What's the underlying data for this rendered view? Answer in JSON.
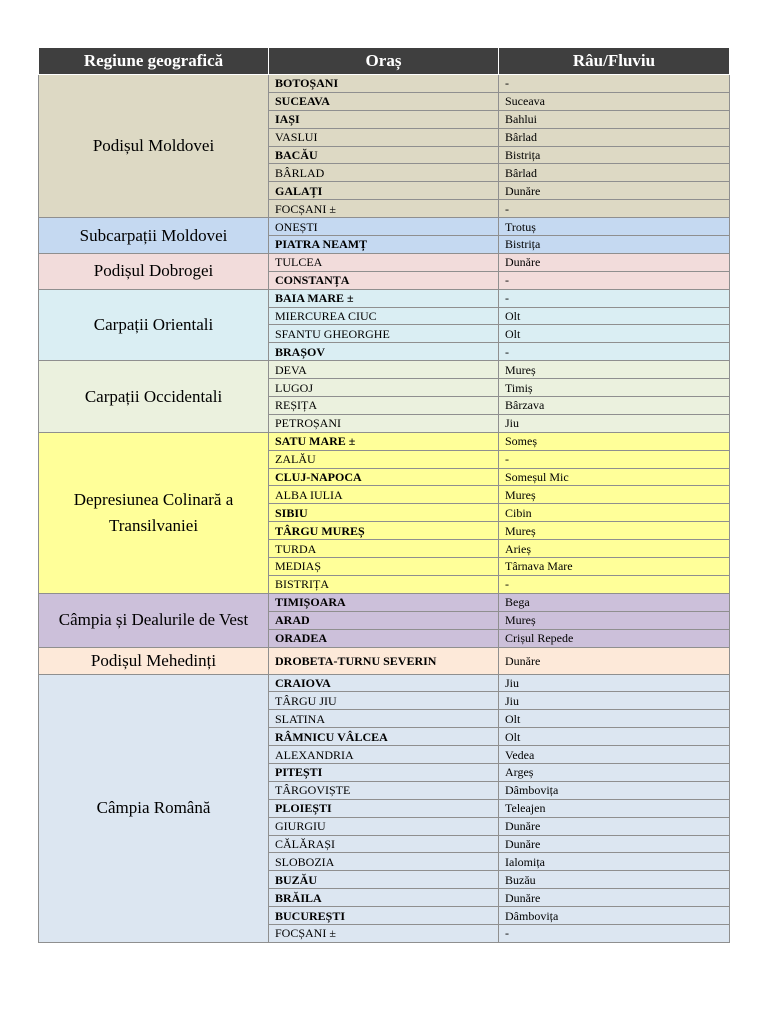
{
  "table": {
    "header": [
      "Regiune geografică",
      "Oraș",
      "Râu/Fluviu"
    ],
    "groups": [
      {
        "region": "Podișul Moldovei",
        "color": "#ddd9c4",
        "rows": [
          {
            "city": "BOTOȘANI",
            "river": "-",
            "bold": true
          },
          {
            "city": "SUCEAVA",
            "river": "Suceava",
            "bold": true
          },
          {
            "city": "IAȘI",
            "river": "Bahlui",
            "bold": true
          },
          {
            "city": "VASLUI",
            "river": "Bârlad",
            "bold": false
          },
          {
            "city": "BACĂU",
            "river": "Bistrița",
            "bold": true
          },
          {
            "city": "BÂRLAD",
            "river": "Bârlad",
            "bold": false
          },
          {
            "city": "GALAȚI",
            "river": "Dunăre",
            "bold": true
          },
          {
            "city": "FOCȘANI ±",
            "river": "-",
            "bold": false
          }
        ]
      },
      {
        "region": "Subcarpații Moldovei",
        "color": "#c5d9f1",
        "rows": [
          {
            "city": "ONEȘTI",
            "river": "Trotuș",
            "bold": false
          },
          {
            "city": "PIATRA NEAMȚ",
            "river": "Bistrița",
            "bold": true
          }
        ]
      },
      {
        "region": "Podișul Dobrogei",
        "color": "#f2dcdb",
        "rows": [
          {
            "city": "TULCEA",
            "river": "Dunăre",
            "bold": false
          },
          {
            "city": "CONSTANȚA",
            "river": "-",
            "bold": true
          }
        ]
      },
      {
        "region": "Carpații Orientali",
        "color": "#daeef3",
        "rows": [
          {
            "city": "BAIA MARE ±",
            "river": "-",
            "bold": true
          },
          {
            "city": "MIERCUREA CIUC",
            "river": "Olt",
            "bold": false
          },
          {
            "city": "SFANTU GHEORGHE",
            "river": "Olt",
            "bold": false
          },
          {
            "city": "BRAȘOV",
            "river": "-",
            "bold": true
          }
        ]
      },
      {
        "region": "Carpații Occidentali",
        "color": "#ebf1de",
        "rows": [
          {
            "city": "DEVA",
            "river": "Mureș",
            "bold": false
          },
          {
            "city": "LUGOJ",
            "river": "Timiș",
            "bold": false
          },
          {
            "city": "REȘIȚA",
            "river": "Bârzava",
            "bold": false
          },
          {
            "city": "PETROȘANI",
            "river": "Jiu",
            "bold": false
          }
        ]
      },
      {
        "region": "Depresiunea Colinară a Transilvaniei",
        "color": "#ffff99",
        "rows": [
          {
            "city": "SATU MARE ±",
            "river": "Someș",
            "bold": true
          },
          {
            "city": "ZALĂU",
            "river": "-",
            "bold": false
          },
          {
            "city": "CLUJ-NAPOCA",
            "river": "Someșul Mic",
            "bold": true
          },
          {
            "city": "ALBA IULIA",
            "river": "Mureș",
            "bold": false
          },
          {
            "city": "SIBIU",
            "river": "Cibin",
            "bold": true
          },
          {
            "city": "TÂRGU MUREȘ",
            "river": "Mureș",
            "bold": true
          },
          {
            "city": "TURDA",
            "river": "Arieș",
            "bold": false
          },
          {
            "city": "MEDIAȘ",
            "river": "Târnava Mare",
            "bold": false
          },
          {
            "city": "BISTRIȚA",
            "river": "-",
            "bold": false
          }
        ]
      },
      {
        "region": "Câmpia și Dealurile de Vest",
        "color": "#ccc0da",
        "rows": [
          {
            "city": "TIMIȘOARA",
            "river": "Bega",
            "bold": true
          },
          {
            "city": "ARAD",
            "river": "Mureș",
            "bold": true
          },
          {
            "city": "ORADEA",
            "river": "Crișul Repede",
            "bold": true
          }
        ]
      },
      {
        "region": "Podișul Mehedinți",
        "color": "#fde9d9",
        "rows": [
          {
            "city": "DROBETA-TURNU SEVERIN",
            "river": "Dunăre",
            "bold": true
          }
        ]
      },
      {
        "region": "Câmpia Română",
        "color": "#dce6f1",
        "rows": [
          {
            "city": "CRAIOVA",
            "river": "Jiu",
            "bold": true
          },
          {
            "city": "TÂRGU JIU",
            "river": "Jiu",
            "bold": false
          },
          {
            "city": "SLATINA",
            "river": "Olt",
            "bold": false
          },
          {
            "city": "RÂMNICU VÂLCEA",
            "river": "Olt",
            "bold": true
          },
          {
            "city": "ALEXANDRIA",
            "river": "Vedea",
            "bold": false
          },
          {
            "city": "PITEȘTI",
            "river": "Argeș",
            "bold": true
          },
          {
            "city": "TÂRGOVIȘTE",
            "river": "Dâmbovița",
            "bold": false
          },
          {
            "city": "PLOIEȘTI",
            "river": "Teleajen",
            "bold": true
          },
          {
            "city": "GIURGIU",
            "river": "Dunăre",
            "bold": false
          },
          {
            "city": "CĂLĂRAȘI",
            "river": "Dunăre",
            "bold": false
          },
          {
            "city": "SLOBOZIA",
            "river": "Ialomița",
            "bold": false
          },
          {
            "city": "BUZĂU",
            "river": "Buzău",
            "bold": true
          },
          {
            "city": "BRĂILA",
            "river": "Dunăre",
            "bold": true
          },
          {
            "city": "BUCUREȘTI",
            "river": "Dâmbovița",
            "bold": true
          },
          {
            "city": "FOCȘANI ±",
            "river": "-",
            "bold": false
          }
        ]
      }
    ]
  }
}
